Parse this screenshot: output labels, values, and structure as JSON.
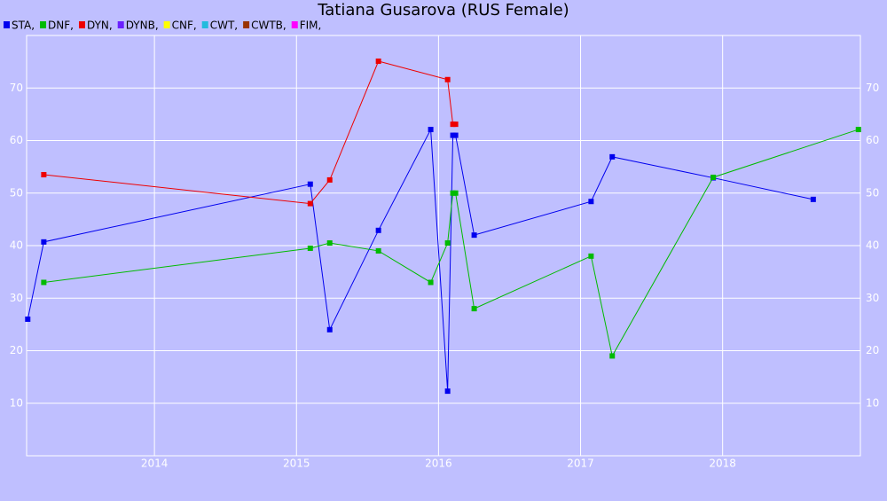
{
  "chart_data": {
    "type": "line",
    "title": "Tatiana Gusarova (RUS Female)",
    "xlim": [
      2013.1,
      2018.97
    ],
    "xticks": [
      2014,
      2015,
      2016,
      2017,
      2018
    ],
    "ylim": [
      0,
      80
    ],
    "yticks": [
      10,
      20,
      30,
      40,
      50,
      60,
      70
    ],
    "grid": true,
    "series": [
      {
        "name": "STA,",
        "color": "#0000ee",
        "x": [
          2013.108,
          2013.221,
          2015.097,
          2015.234,
          2015.577,
          2015.945,
          2016.064,
          2016.101,
          2016.12,
          2016.251,
          2017.074,
          2017.223,
          2017.934,
          2018.638
        ],
        "values": [
          26,
          40.7,
          51.7,
          24,
          42.9,
          62.1,
          12.3,
          61,
          61,
          42,
          48.4,
          56.9,
          52.9,
          48.8
        ]
      },
      {
        "name": "DNF,",
        "color": "#00bb00",
        "x": [
          2013.221,
          2015.097,
          2015.234,
          2015.577,
          2015.945,
          2016.064,
          2016.101,
          2016.12,
          2016.251,
          2017.074,
          2017.223,
          2017.934,
          2018.956
        ],
        "values": [
          33,
          39.5,
          40.5,
          39,
          33,
          40.5,
          50,
          50,
          28,
          38,
          19,
          53,
          62.1
        ]
      },
      {
        "name": "DYN,",
        "color": "#ee0000",
        "x": [
          2013.221,
          2015.097,
          2015.234,
          2015.577,
          2016.064,
          2016.101,
          2016.12
        ],
        "values": [
          53.5,
          48,
          52.5,
          75.1,
          71.6,
          63.1,
          63.1
        ]
      },
      {
        "name": "DYNB,",
        "color": "#6a1fff",
        "x": [],
        "values": []
      },
      {
        "name": "CNF,",
        "color": "#ffff00",
        "x": [],
        "values": []
      },
      {
        "name": "CWT,",
        "color": "#22bbdd",
        "x": [],
        "values": []
      },
      {
        "name": "CWTB,",
        "color": "#993300",
        "x": [],
        "values": []
      },
      {
        "name": "FIM,",
        "color": "#ff00ff",
        "x": [],
        "values": []
      }
    ]
  }
}
